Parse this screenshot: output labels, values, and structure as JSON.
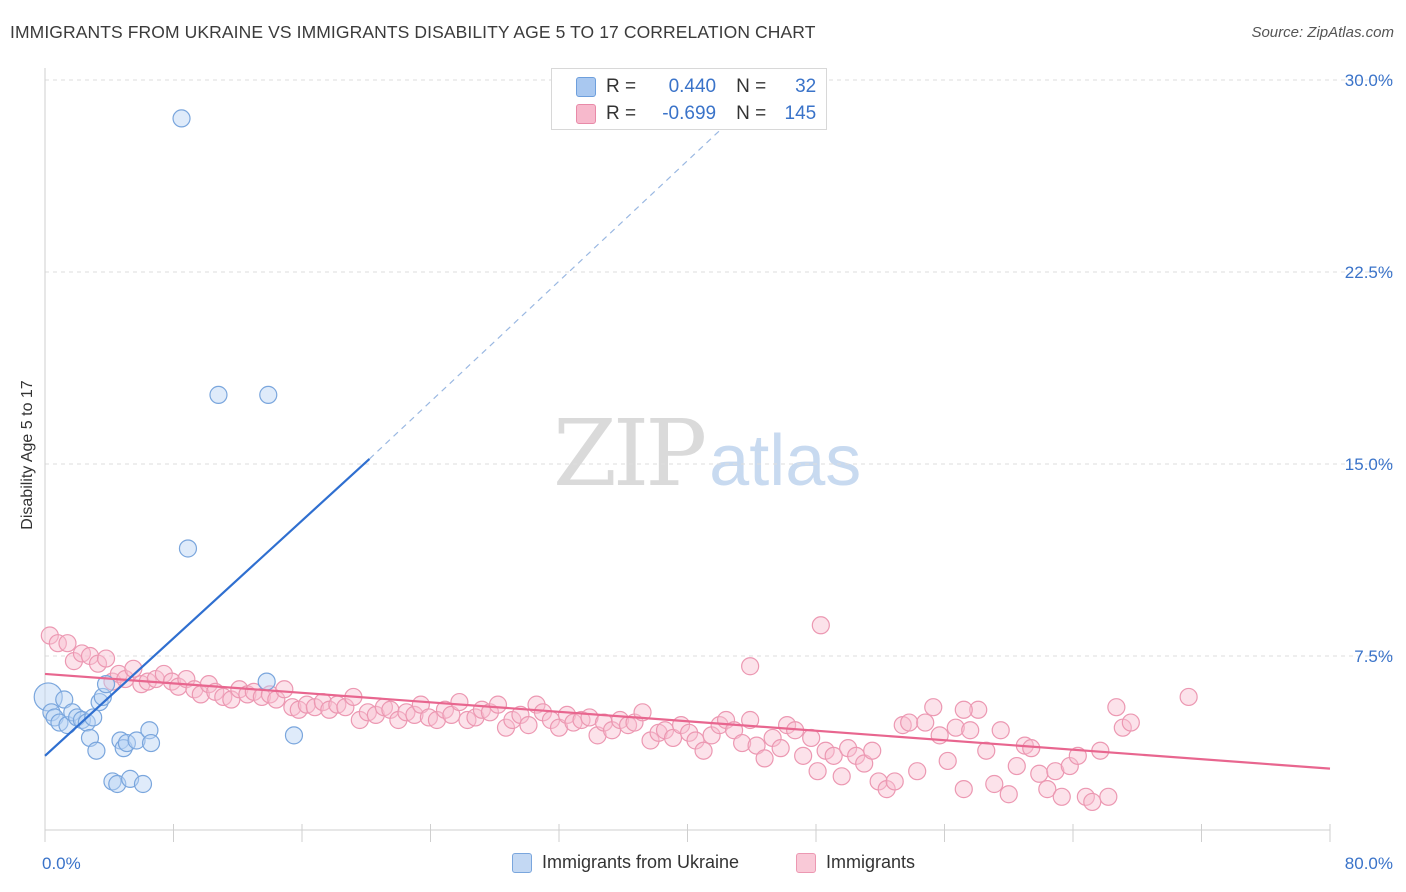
{
  "header": {
    "title": "IMMIGRANTS FROM UKRAINE VS IMMIGRANTS DISABILITY AGE 5 TO 17 CORRELATION CHART",
    "source": "Source: ZipAtlas.com"
  },
  "watermark": {
    "zip": "ZIP",
    "atlas": "atlas"
  },
  "stats": {
    "rows": [
      {
        "r_label": "R =",
        "r_value": "0.440",
        "n_label": "N =",
        "n_value": "32",
        "color": "#a9c8f0",
        "border": "#6e9fdc"
      },
      {
        "r_label": "R =",
        "r_value": "-0.699",
        "n_label": "N =",
        "n_value": "145",
        "color": "#f7b9cc",
        "border": "#e88aa8"
      }
    ]
  },
  "legend": {
    "items": [
      {
        "label": "Immigrants from Ukraine",
        "color": "#c3d8f3",
        "border": "#7aa6dd"
      },
      {
        "label": "Immigrants",
        "color": "#f9c9d7",
        "border": "#ec98b2"
      }
    ]
  },
  "chart_data": {
    "type": "scatter",
    "title": "IMMIGRANTS FROM UKRAINE VS IMMIGRANTS DISABILITY AGE 5 TO 17 CORRELATION CHART",
    "xlabel": "",
    "ylabel": "Disability Age 5 to 17",
    "xlim": [
      0,
      80
    ],
    "ylim": [
      0,
      31
    ],
    "x_tick_labels": [
      "0.0%",
      "80.0%"
    ],
    "y_ticks": [
      7.5,
      15.0,
      22.5,
      30.0
    ],
    "y_tick_labels": [
      "7.5%",
      "15.0%",
      "22.5%",
      "30.0%"
    ],
    "grid": "horizontal dashed",
    "legend_position": "bottom",
    "series": [
      {
        "name": "Immigrants from Ukraine",
        "color": "#8db5ea",
        "line_color": "#2f6fd0",
        "trend": {
          "x0": 0,
          "y0": 3.6,
          "x1": 20.2,
          "y1": 15.2,
          "dashed_to_x": 44,
          "dashed_to_y": 29.2
        },
        "points": [
          [
            0.2,
            5.9
          ],
          [
            0.4,
            5.3
          ],
          [
            0.6,
            5.1
          ],
          [
            0.9,
            4.9
          ],
          [
            1.2,
            5.8
          ],
          [
            1.4,
            4.8
          ],
          [
            1.7,
            5.3
          ],
          [
            2.0,
            5.1
          ],
          [
            2.3,
            5.0
          ],
          [
            2.6,
            4.9
          ],
          [
            2.8,
            4.3
          ],
          [
            3.0,
            5.1
          ],
          [
            3.2,
            3.8
          ],
          [
            3.4,
            5.7
          ],
          [
            3.6,
            5.9
          ],
          [
            3.8,
            6.4
          ],
          [
            4.2,
            2.6
          ],
          [
            4.5,
            2.5
          ],
          [
            4.7,
            4.2
          ],
          [
            4.9,
            3.9
          ],
          [
            5.1,
            4.1
          ],
          [
            5.3,
            2.7
          ],
          [
            5.7,
            4.2
          ],
          [
            6.1,
            2.5
          ],
          [
            6.5,
            4.6
          ],
          [
            6.6,
            4.1
          ],
          [
            8.5,
            28.5
          ],
          [
            8.9,
            11.7
          ],
          [
            10.8,
            17.7
          ],
          [
            13.9,
            17.7
          ],
          [
            13.8,
            6.5
          ],
          [
            15.5,
            4.4
          ]
        ]
      },
      {
        "name": "Immigrants",
        "color": "#f4a3bc",
        "line_color": "#e8668f",
        "trend": {
          "x0": 0,
          "y0": 6.8,
          "x1": 80,
          "y1": 3.1
        },
        "points": [
          [
            0.3,
            8.3
          ],
          [
            0.8,
            8.0
          ],
          [
            1.4,
            8.0
          ],
          [
            1.8,
            7.3
          ],
          [
            2.3,
            7.6
          ],
          [
            2.8,
            7.5
          ],
          [
            3.3,
            7.2
          ],
          [
            3.8,
            7.4
          ],
          [
            4.2,
            6.5
          ],
          [
            4.6,
            6.8
          ],
          [
            5.0,
            6.6
          ],
          [
            5.5,
            7.0
          ],
          [
            6.0,
            6.4
          ],
          [
            6.4,
            6.5
          ],
          [
            6.9,
            6.6
          ],
          [
            7.4,
            6.8
          ],
          [
            7.9,
            6.5
          ],
          [
            8.3,
            6.3
          ],
          [
            8.8,
            6.6
          ],
          [
            9.3,
            6.2
          ],
          [
            9.7,
            6.0
          ],
          [
            10.2,
            6.4
          ],
          [
            10.6,
            6.1
          ],
          [
            11.1,
            5.9
          ],
          [
            11.6,
            5.8
          ],
          [
            12.1,
            6.2
          ],
          [
            12.6,
            6.0
          ],
          [
            13.0,
            6.1
          ],
          [
            13.5,
            5.9
          ],
          [
            14.0,
            6.0
          ],
          [
            14.4,
            5.8
          ],
          [
            14.9,
            6.2
          ],
          [
            15.4,
            5.5
          ],
          [
            15.8,
            5.4
          ],
          [
            16.3,
            5.6
          ],
          [
            16.8,
            5.5
          ],
          [
            17.3,
            5.7
          ],
          [
            17.7,
            5.4
          ],
          [
            18.2,
            5.6
          ],
          [
            18.7,
            5.5
          ],
          [
            19.2,
            5.9
          ],
          [
            19.6,
            5.0
          ],
          [
            20.1,
            5.3
          ],
          [
            20.6,
            5.2
          ],
          [
            21.1,
            5.5
          ],
          [
            21.5,
            5.4
          ],
          [
            22.0,
            5.0
          ],
          [
            22.5,
            5.3
          ],
          [
            23.0,
            5.2
          ],
          [
            23.4,
            5.6
          ],
          [
            23.9,
            5.1
          ],
          [
            24.4,
            5.0
          ],
          [
            24.9,
            5.4
          ],
          [
            25.3,
            5.2
          ],
          [
            25.8,
            5.7
          ],
          [
            26.3,
            5.0
          ],
          [
            26.8,
            5.1
          ],
          [
            27.2,
            5.4
          ],
          [
            27.7,
            5.3
          ],
          [
            28.2,
            5.6
          ],
          [
            28.7,
            4.7
          ],
          [
            29.1,
            5.0
          ],
          [
            29.6,
            5.2
          ],
          [
            30.1,
            4.8
          ],
          [
            30.6,
            5.6
          ],
          [
            31.0,
            5.3
          ],
          [
            31.5,
            5.0
          ],
          [
            32.0,
            4.7
          ],
          [
            32.5,
            5.2
          ],
          [
            32.9,
            4.9
          ],
          [
            33.4,
            5.0
          ],
          [
            33.9,
            5.1
          ],
          [
            34.4,
            4.4
          ],
          [
            34.8,
            4.9
          ],
          [
            35.3,
            4.6
          ],
          [
            35.8,
            5.0
          ],
          [
            36.3,
            4.8
          ],
          [
            36.7,
            4.9
          ],
          [
            37.2,
            5.3
          ],
          [
            37.7,
            4.2
          ],
          [
            38.2,
            4.5
          ],
          [
            38.6,
            4.6
          ],
          [
            39.1,
            4.3
          ],
          [
            39.6,
            4.8
          ],
          [
            40.1,
            4.5
          ],
          [
            40.5,
            4.2
          ],
          [
            41.0,
            3.8
          ],
          [
            41.5,
            4.4
          ],
          [
            42.0,
            4.8
          ],
          [
            42.4,
            5.0
          ],
          [
            42.9,
            4.6
          ],
          [
            43.4,
            4.1
          ],
          [
            43.9,
            5.0
          ],
          [
            44.3,
            4.0
          ],
          [
            44.8,
            3.5
          ],
          [
            45.3,
            4.3
          ],
          [
            45.8,
            3.9
          ],
          [
            46.2,
            4.8
          ],
          [
            46.7,
            4.6
          ],
          [
            47.2,
            3.6
          ],
          [
            47.7,
            4.3
          ],
          [
            48.1,
            3.0
          ],
          [
            48.6,
            3.8
          ],
          [
            49.1,
            3.6
          ],
          [
            49.6,
            2.8
          ],
          [
            50.0,
            3.9
          ],
          [
            50.5,
            3.6
          ],
          [
            51.0,
            3.3
          ],
          [
            51.5,
            3.8
          ],
          [
            51.9,
            2.6
          ],
          [
            52.4,
            2.3
          ],
          [
            52.9,
            2.6
          ],
          [
            53.4,
            4.8
          ],
          [
            53.8,
            4.9
          ],
          [
            54.3,
            3.0
          ],
          [
            54.8,
            4.9
          ],
          [
            55.3,
            5.5
          ],
          [
            55.7,
            4.4
          ],
          [
            56.2,
            3.4
          ],
          [
            56.7,
            4.7
          ],
          [
            57.2,
            2.3
          ],
          [
            57.6,
            4.6
          ],
          [
            58.1,
            5.4
          ],
          [
            58.6,
            3.8
          ],
          [
            59.1,
            2.5
          ],
          [
            59.5,
            4.6
          ],
          [
            60.0,
            2.1
          ],
          [
            60.5,
            3.2
          ],
          [
            61.0,
            4.0
          ],
          [
            61.4,
            3.9
          ],
          [
            61.9,
            2.9
          ],
          [
            62.4,
            2.3
          ],
          [
            62.9,
            3.0
          ],
          [
            63.3,
            2.0
          ],
          [
            63.8,
            3.2
          ],
          [
            64.3,
            3.6
          ],
          [
            64.8,
            2.0
          ],
          [
            65.2,
            1.8
          ],
          [
            65.7,
            3.8
          ],
          [
            66.2,
            2.0
          ],
          [
            66.7,
            5.5
          ],
          [
            67.1,
            4.7
          ],
          [
            67.6,
            4.9
          ],
          [
            48.3,
            8.7
          ],
          [
            43.9,
            7.1
          ],
          [
            57.2,
            5.4
          ],
          [
            71.2,
            5.9
          ]
        ]
      }
    ]
  }
}
